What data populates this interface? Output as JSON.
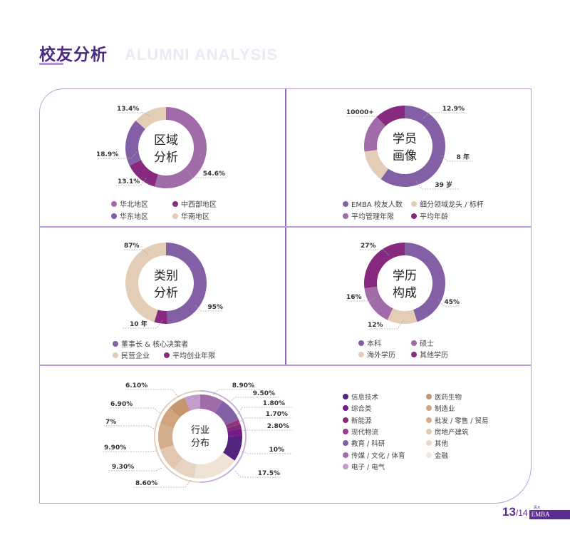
{
  "header": {
    "title_cn": "校友分析",
    "title_en": "ALUMNI ANALYSIS"
  },
  "pager": {
    "current": "13",
    "total": "/14",
    "badge": "EMBA",
    "badge_sup": "清大"
  },
  "chart_data": [
    {
      "type": "pie",
      "title": "区域分析",
      "center": [
        "区域",
        "分析"
      ],
      "slices": [
        {
          "label": "华北地区",
          "value": 54.6,
          "display": "54.6%",
          "color": "#a16aa8"
        },
        {
          "label": "中西部地区",
          "value": 13.1,
          "display": "13.1%",
          "color": "#86297f"
        },
        {
          "label": "华东地区",
          "value": 18.9,
          "display": "18.9%",
          "color": "#835fa6"
        },
        {
          "label": "华南地区",
          "value": 13.4,
          "display": "13.4%",
          "color": "#e4cdb6"
        }
      ],
      "legend": [
        "华北地区",
        "中西部地区",
        "华东地区",
        "华南地区"
      ]
    },
    {
      "type": "pie",
      "title": "学员画像",
      "center": [
        "学员",
        "画像"
      ],
      "slices": [
        {
          "label": "EMBA 校友人数",
          "value": 60,
          "display": "10000+",
          "color": "#835fa6"
        },
        {
          "label": "细分领域龙头 / 标杆",
          "value": 12.9,
          "display": "12.9%",
          "color": "#e4cdb6"
        },
        {
          "label": "平均管理年限",
          "value": 15,
          "display": "8 年",
          "color": "#a16aa8"
        },
        {
          "label": "平均年龄",
          "value": 12.1,
          "display": "39 岁",
          "color": "#86297f"
        }
      ],
      "legend": [
        "EMBA 校友人数",
        "细分领域龙头 / 标杆",
        "平均管理年限",
        "平均年龄"
      ]
    },
    {
      "type": "pie",
      "title": "类别分析",
      "center": [
        "类别",
        "分析"
      ],
      "slices": [
        {
          "label": "董事长 & 核心决策者",
          "value": 95,
          "display": "95%",
          "color": "#835fa6"
        },
        {
          "label": "平均创业年限",
          "value": 10,
          "display": "10 年",
          "color": "#86297f"
        },
        {
          "label": "民营企业",
          "value": 87,
          "display": "87%",
          "color": "#e4cdb6"
        }
      ],
      "legend": [
        "董事长 & 核心决策者",
        "民营企业",
        "平均创业年限"
      ]
    },
    {
      "type": "pie",
      "title": "学历构成",
      "center": [
        "学历",
        "构成"
      ],
      "slices": [
        {
          "label": "本科",
          "value": 45,
          "display": "45%",
          "color": "#835fa6"
        },
        {
          "label": "海外学历",
          "value": 12,
          "display": "12%",
          "color": "#e4cdb6"
        },
        {
          "label": "硕士",
          "value": 16,
          "display": "16%",
          "color": "#a16aa8"
        },
        {
          "label": "其他学历",
          "value": 27,
          "display": "27%",
          "color": "#86297f"
        }
      ],
      "legend": [
        "本科",
        "硕士",
        "海外学历",
        "其他学历"
      ]
    },
    {
      "type": "pie",
      "title": "行业分布",
      "center": [
        "行业",
        "分布"
      ],
      "slices": [
        {
          "label": "传媒 / 文化 / 体育",
          "value": 8.9,
          "display": "8.90%",
          "color": "#a16aa8"
        },
        {
          "label": "教育 / 科研",
          "value": 9.5,
          "display": "9.50%",
          "color": "#835fa6"
        },
        {
          "label": "现代物流",
          "value": 1.8,
          "display": "1.80%",
          "color": "#93337f"
        },
        {
          "label": "新能源",
          "value": 1.7,
          "display": "1.70%",
          "color": "#7e2c7a"
        },
        {
          "label": "综合类",
          "value": 2.8,
          "display": "2.80%",
          "color": "#741b8a"
        },
        {
          "label": "信息技术",
          "value": 10,
          "display": "10%",
          "color": "#55247f"
        },
        {
          "label": "金融",
          "value": 17.5,
          "display": "17.5%",
          "color": "#efe3d6"
        },
        {
          "label": "其他",
          "value": 8.6,
          "display": "8.60%",
          "color": "#e7d4c3"
        },
        {
          "label": "房地产建筑",
          "value": 9.3,
          "display": "9.30%",
          "color": "#e2c8b0"
        },
        {
          "label": "批发 / 零售 / 贸易",
          "value": 9.9,
          "display": "9.90%",
          "color": "#d4ae8c"
        },
        {
          "label": "制造业",
          "value": 7,
          "display": "7%",
          "color": "#cfa47f"
        },
        {
          "label": "医药生物",
          "value": 6.9,
          "display": "6.90%",
          "color": "#c59670"
        },
        {
          "label": "电子 / 电气",
          "value": 6.1,
          "display": "6.10%",
          "color": "#c29ccb"
        }
      ],
      "legend": [
        {
          "label": "信息技术",
          "color": "#55247f"
        },
        {
          "label": "综合类",
          "color": "#741b8a"
        },
        {
          "label": "新能源",
          "color": "#86297f"
        },
        {
          "label": "现代物流",
          "color": "#9a3a8c"
        },
        {
          "label": "教育 / 科研",
          "color": "#835fa6"
        },
        {
          "label": "传媒 / 文化 / 体育",
          "color": "#a16aa8"
        },
        {
          "label": "电子 / 电气",
          "color": "#c29ccb"
        },
        {
          "label": "医药生物",
          "color": "#c59670"
        },
        {
          "label": "制造业",
          "color": "#cfa47f"
        },
        {
          "label": "批发 / 零售 / 贸易",
          "color": "#d4ae8c"
        },
        {
          "label": "房地产建筑",
          "color": "#e2c8b0"
        },
        {
          "label": "其他",
          "color": "#e9d8c8"
        },
        {
          "label": "金融",
          "color": "#f0e6da"
        }
      ]
    }
  ]
}
